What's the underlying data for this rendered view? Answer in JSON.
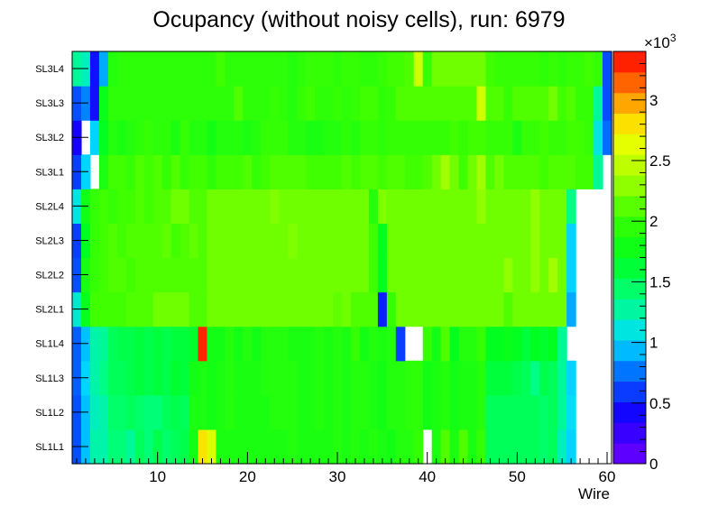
{
  "chart_data": {
    "type": "heatmap",
    "title": "Ocupancy (without noisy cells), run: 6979",
    "xlabel": "Wire",
    "ylabel": "",
    "xlim": [
      0.5,
      60.5
    ],
    "x_ticks": [
      10,
      20,
      30,
      40,
      50,
      60
    ],
    "y_categories": [
      "SL1L1",
      "SL1L2",
      "SL1L3",
      "SL1L4",
      "SL2L1",
      "SL2L2",
      "SL2L3",
      "SL2L4",
      "SL3L1",
      "SL3L2",
      "SL3L3",
      "SL3L4"
    ],
    "z_range": [
      0,
      3400
    ],
    "colorbar_ticks": [
      "0",
      "0.5",
      "1",
      "1.5",
      "2",
      "2.5",
      "3"
    ],
    "colorbar_exponent": "×10",
    "colorbar_exponent_power": "3",
    "grid": false,
    "legend": "colorbar-right",
    "z": [
      [
        650,
        950,
        1250,
        1250,
        1400,
        1400,
        1300,
        1500,
        1400,
        1550,
        1450,
        1500,
        1550,
        1800,
        2800,
        2600,
        1850,
        1850,
        1850,
        1850,
        1850,
        1850,
        1850,
        1850,
        1900,
        1850,
        1850,
        1850,
        1850,
        1900,
        1850,
        1900,
        1850,
        1900,
        1850,
        1800,
        1900,
        1900,
        2000,
        null,
        1850,
        2100,
        1850,
        2100,
        1850,
        2000,
        1500,
        1500,
        1500,
        1500,
        1500,
        1500,
        1450,
        1500,
        1200,
        1000,
        null,
        null,
        null,
        null
      ],
      [
        650,
        950,
        1200,
        1250,
        1450,
        1450,
        1500,
        1450,
        1400,
        1400,
        1500,
        1550,
        1500,
        1850,
        1850,
        1800,
        1850,
        1900,
        1850,
        1850,
        1850,
        1850,
        1900,
        1900,
        1900,
        1850,
        1850,
        1900,
        1850,
        1900,
        1850,
        1900,
        1900,
        1850,
        1800,
        1900,
        1900,
        1950,
        1950,
        1800,
        1850,
        1900,
        1800,
        1850,
        1850,
        1900,
        1500,
        1500,
        1500,
        1500,
        1500,
        1500,
        1450,
        1500,
        1300,
        1050,
        null,
        null,
        null,
        null
      ],
      [
        700,
        1000,
        1250,
        1350,
        1500,
        1500,
        1550,
        1600,
        1550,
        1600,
        1550,
        1650,
        1600,
        1800,
        1850,
        1800,
        1850,
        1900,
        1850,
        1850,
        1850,
        1900,
        1900,
        1900,
        1900,
        1850,
        1850,
        1900,
        1850,
        1900,
        1850,
        1900,
        1900,
        1850,
        1800,
        1900,
        1900,
        1950,
        1950,
        1800,
        1850,
        1900,
        1800,
        1850,
        1850,
        1900,
        1600,
        1600,
        1600,
        1550,
        1500,
        1350,
        1550,
        1500,
        1300,
        1000,
        null,
        null,
        null,
        null
      ],
      [
        700,
        950,
        1250,
        1300,
        1500,
        1550,
        1550,
        1600,
        1550,
        1600,
        1550,
        1600,
        1600,
        1650,
        3300,
        1800,
        1800,
        1900,
        1800,
        1900,
        1800,
        1900,
        1900,
        1900,
        1850,
        1850,
        1850,
        1900,
        1850,
        1900,
        1850,
        2000,
        1800,
        1900,
        1850,
        1900,
        600,
        null,
        null,
        2000,
        1800,
        2100,
        1700,
        1900,
        1900,
        2000,
        1700,
        1700,
        1750,
        1700,
        1600,
        1700,
        1650,
        1700,
        1300,
        null,
        null,
        null,
        null,
        null
      ],
      [
        1150,
        1750,
        2050,
        2050,
        2050,
        2050,
        2100,
        2100,
        2100,
        2200,
        2200,
        2200,
        2200,
        2100,
        2100,
        2200,
        2200,
        2200,
        2200,
        2200,
        2200,
        2200,
        2200,
        2200,
        2200,
        2200,
        2200,
        2200,
        2200,
        2150,
        2200,
        2100,
        2100,
        2100,
        500,
        2000,
        2200,
        2200,
        2200,
        2200,
        2200,
        2200,
        2200,
        2200,
        2200,
        2200,
        2200,
        2200,
        2100,
        2200,
        2200,
        2200,
        2200,
        2200,
        2200,
        900,
        null,
        null,
        null,
        null
      ],
      [
        650,
        1850,
        2000,
        2050,
        2100,
        2100,
        2050,
        2100,
        2100,
        2100,
        2100,
        2100,
        2100,
        2100,
        2100,
        2200,
        2200,
        2200,
        2200,
        2200,
        2200,
        2200,
        2200,
        2200,
        2200,
        2200,
        2200,
        2200,
        2200,
        2200,
        2200,
        2200,
        2200,
        2050,
        1700,
        2200,
        2200,
        2200,
        2200,
        2200,
        2200,
        2200,
        2200,
        2200,
        2200,
        2200,
        2200,
        2200,
        2300,
        2200,
        2200,
        2300,
        2200,
        2350,
        2200,
        1000,
        null,
        null,
        null,
        null
      ],
      [
        600,
        1700,
        2000,
        2050,
        2100,
        2050,
        2100,
        2100,
        2100,
        2100,
        2150,
        2050,
        2100,
        2150,
        2100,
        2200,
        2200,
        2200,
        2200,
        2200,
        2200,
        2200,
        2200,
        2200,
        2250,
        2200,
        2200,
        2200,
        2200,
        2200,
        2200,
        2200,
        2200,
        2050,
        1700,
        2200,
        2200,
        2200,
        2200,
        2200,
        2200,
        2200,
        2200,
        2200,
        2200,
        2200,
        2200,
        2200,
        2200,
        2200,
        2200,
        2300,
        2200,
        2200,
        2200,
        1000,
        null,
        null,
        null,
        null
      ],
      [
        1100,
        1800,
        2000,
        2050,
        2000,
        2050,
        2050,
        2100,
        2050,
        2100,
        2100,
        2200,
        2200,
        2100,
        2100,
        2200,
        2200,
        2200,
        2200,
        2200,
        2200,
        2200,
        2250,
        2200,
        2200,
        2200,
        2200,
        2200,
        2200,
        2200,
        2200,
        2200,
        2200,
        1900,
        2250,
        2200,
        2200,
        2200,
        2200,
        2200,
        2200,
        2200,
        2200,
        2200,
        2200,
        2300,
        2200,
        2200,
        2200,
        2200,
        2200,
        2300,
        2200,
        2200,
        2200,
        1350,
        null,
        null,
        null,
        null
      ],
      [
        600,
        1000,
        null,
        1850,
        2050,
        2050,
        2000,
        2100,
        2050,
        2100,
        2000,
        2100,
        2000,
        2050,
        2050,
        1950,
        2050,
        2050,
        2050,
        2100,
        2000,
        2050,
        2100,
        2100,
        2100,
        2100,
        2050,
        2050,
        2050,
        2050,
        2100,
        2050,
        2100,
        2100,
        2050,
        2100,
        2100,
        2050,
        2050,
        2100,
        2200,
        2350,
        2200,
        2050,
        2200,
        2350,
        2100,
        2200,
        2100,
        2100,
        2100,
        2100,
        2050,
        2100,
        2100,
        2100,
        2050,
        2050,
        1300,
        null
      ],
      [
        400,
        null,
        1000,
        1700,
        1900,
        1850,
        1900,
        1950,
        2000,
        1950,
        1950,
        1850,
        2000,
        1900,
        1900,
        1800,
        1900,
        1900,
        1900,
        1850,
        1900,
        2000,
        2000,
        2000,
        1900,
        1900,
        1850,
        1850,
        1900,
        1900,
        1950,
        1900,
        2000,
        2000,
        1950,
        2000,
        2000,
        2000,
        2000,
        2000,
        2000,
        2000,
        2050,
        2000,
        2050,
        2050,
        2000,
        2000,
        2000,
        1850,
        2000,
        2000,
        2050,
        2000,
        2000,
        2050,
        2050,
        2000,
        1100,
        750
      ],
      [
        650,
        800,
        450,
        1750,
        1950,
        1950,
        1950,
        1950,
        1950,
        1950,
        1950,
        1950,
        1950,
        1950,
        1950,
        1950,
        1950,
        1950,
        2100,
        1950,
        1950,
        1950,
        2000,
        1950,
        1900,
        2000,
        2050,
        1950,
        1950,
        2000,
        1950,
        2000,
        2050,
        2050,
        1950,
        2000,
        2100,
        2100,
        2100,
        2100,
        2100,
        2100,
        2100,
        2100,
        2100,
        2550,
        2100,
        2100,
        2000,
        2100,
        2100,
        2100,
        2100,
        2200,
        2050,
        2100,
        2000,
        2000,
        1300,
        650
      ],
      [
        1300,
        1200,
        450,
        900,
        1900,
        1950,
        1950,
        1950,
        1950,
        1950,
        1950,
        1950,
        1950,
        1950,
        1950,
        1950,
        2050,
        1950,
        1950,
        1950,
        1950,
        1950,
        1950,
        1950,
        1900,
        1950,
        2000,
        2000,
        2000,
        1950,
        2000,
        2000,
        1950,
        1950,
        2000,
        2050,
        2050,
        2100,
        2550,
        2000,
        2200,
        2200,
        2200,
        2200,
        2200,
        2200,
        2050,
        2000,
        2000,
        2000,
        2000,
        2000,
        1950,
        2000,
        1950,
        2000,
        2000,
        2050,
        2000,
        650
      ]
    ]
  }
}
